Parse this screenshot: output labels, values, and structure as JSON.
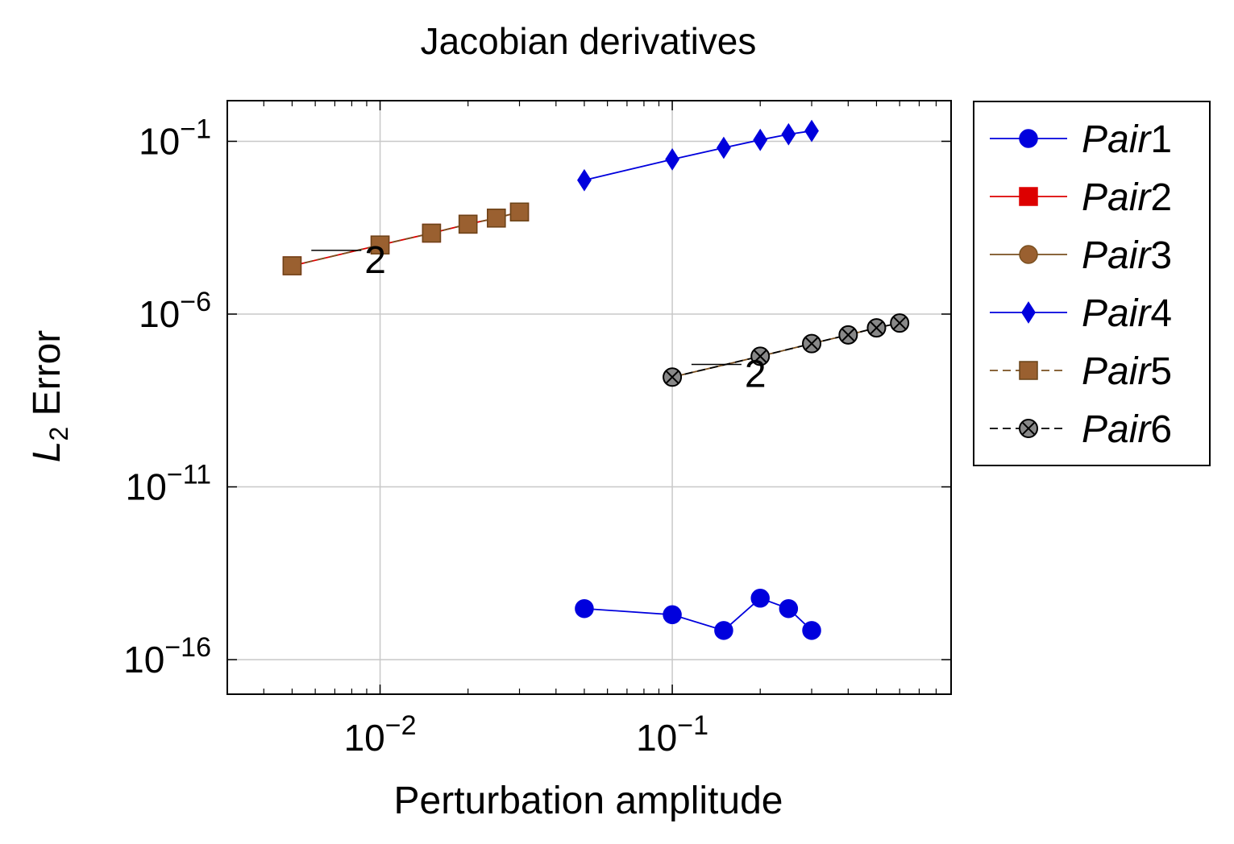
{
  "chart_data": {
    "type": "scatter",
    "title": "Jacobian derivatives",
    "xlabel": "Perturbation amplitude",
    "ylabel_main": "L",
    "ylabel_sub": "2",
    "ylabel_rest": "Error",
    "x_scale": "log",
    "y_scale": "log",
    "xlim": [
      0.003,
      0.9
    ],
    "ylim": [
      1e-17,
      1.5
    ],
    "x_ticks": [
      {
        "value": 0.01,
        "base": "10",
        "exp": "−2"
      },
      {
        "value": 0.1,
        "base": "10",
        "exp": "−1"
      }
    ],
    "y_ticks": [
      {
        "value": 0.1,
        "base": "10",
        "exp": "−1"
      },
      {
        "value": 1e-06,
        "base": "10",
        "exp": "−6"
      },
      {
        "value": 1e-11,
        "base": "10",
        "exp": "−11"
      },
      {
        "value": 1e-16,
        "base": "10",
        "exp": "−16"
      }
    ],
    "grid": true,
    "legend_position": "outside-right",
    "series": [
      {
        "name": "Pair1",
        "legend_base": "Pair",
        "legend_num": "1",
        "color": "#0000dd",
        "marker": "circle",
        "dash": false,
        "x": [
          0.05,
          0.1,
          0.15,
          0.2,
          0.25,
          0.3
        ],
        "y": [
          3e-15,
          2e-15,
          7e-16,
          6e-15,
          3e-15,
          7e-16
        ]
      },
      {
        "name": "Pair2",
        "legend_base": "Pair",
        "legend_num": "2",
        "color": "#dd0000",
        "marker": "square",
        "dash": false,
        "x": [
          0.005,
          0.01,
          0.015,
          0.02,
          0.025,
          0.03
        ],
        "y": [
          2.5e-05,
          0.0001,
          0.00022,
          0.0004,
          0.0006,
          0.0009
        ]
      },
      {
        "name": "Pair3",
        "legend_base": "Pair",
        "legend_num": "3",
        "color": "#7a5020",
        "marker": "circle",
        "dash": false,
        "x": [
          0.1,
          0.2,
          0.3,
          0.4,
          0.5,
          0.6
        ],
        "y": [
          1.5e-08,
          6e-08,
          1.4e-07,
          2.5e-07,
          4e-07,
          5.5e-07
        ]
      },
      {
        "name": "Pair4",
        "legend_base": "Pair",
        "legend_num": "4",
        "color": "#0000dd",
        "marker": "diamond",
        "dash": false,
        "x": [
          0.05,
          0.1,
          0.15,
          0.2,
          0.25,
          0.3
        ],
        "y": [
          0.0075,
          0.03,
          0.065,
          0.11,
          0.16,
          0.2
        ]
      },
      {
        "name": "Pair5",
        "legend_base": "Pair",
        "legend_num": "5",
        "color": "#7a5020",
        "marker": "square",
        "dash": true,
        "x": [
          0.005,
          0.01,
          0.015,
          0.02,
          0.025,
          0.03
        ],
        "y": [
          2.5e-05,
          0.0001,
          0.00022,
          0.0004,
          0.0006,
          0.0009
        ]
      },
      {
        "name": "Pair6",
        "legend_base": "Pair",
        "legend_num": "6",
        "color": "#000000",
        "marker": "otimes",
        "dash": true,
        "x": [
          0.1,
          0.2,
          0.3,
          0.4,
          0.5,
          0.6
        ],
        "y": [
          1.5e-08,
          6e-08,
          1.4e-07,
          2.5e-07,
          4e-07,
          5.5e-07
        ]
      }
    ],
    "annotations": [
      {
        "text": "2",
        "x": 0.0075,
        "y": 7e-05
      },
      {
        "text": "2",
        "x": 0.15,
        "y": 3.5e-08
      }
    ]
  }
}
